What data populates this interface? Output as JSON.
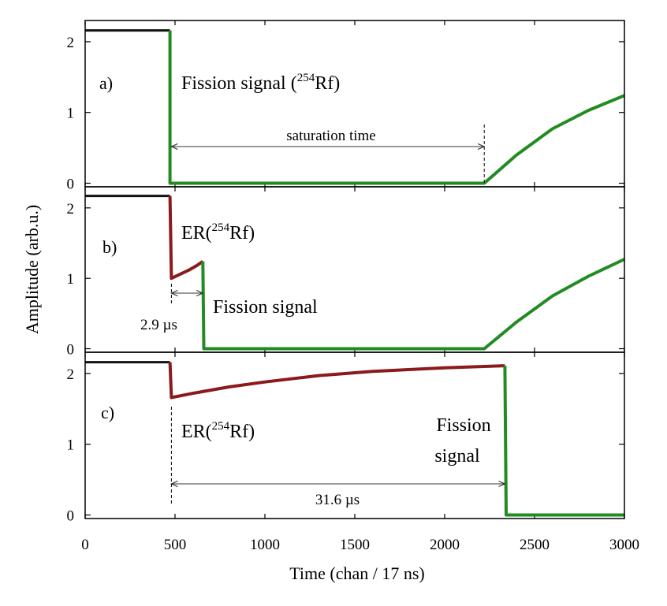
{
  "chart_data": {
    "type": "line",
    "xlabel": "Time (chan / 17 ns)",
    "ylabel": "Amplitude (arb.u.)",
    "xlim": [
      0,
      3000
    ],
    "xticks": [
      0,
      500,
      1000,
      1500,
      2000,
      2500,
      3000
    ],
    "ylim": [
      -0.05,
      2.3
    ],
    "yticks": [
      0,
      1,
      2
    ],
    "grid": false,
    "colors": {
      "baseline": "#111111",
      "er": "#8b1a1a",
      "fission": "#228b22",
      "frame": "#000000"
    },
    "panels": [
      {
        "label": "a)",
        "series": [
          {
            "name": "baseline",
            "x": [
              0,
              472
            ],
            "y": [
              2.16,
              2.16
            ]
          },
          {
            "name": "fission",
            "x": [
              472,
              472,
              480,
              2220,
              2400,
              2600,
              2800,
              3000
            ],
            "y": [
              2.16,
              0.0,
              0.0,
              0.0,
              0.4,
              0.77,
              1.03,
              1.24
            ]
          }
        ],
        "annotations": {
          "fission_pre": "Fission signal (",
          "fission_sup": "254",
          "fission_post": "Rf)",
          "interval": "saturation time",
          "interval_start": 480,
          "interval_end": 2220
        }
      },
      {
        "label": "b)",
        "series": [
          {
            "name": "baseline",
            "x": [
              0,
              472
            ],
            "y": [
              2.17,
              2.17
            ]
          },
          {
            "name": "er",
            "x": [
              472,
              480,
              530,
              580,
              620,
              655
            ],
            "y": [
              2.17,
              1.0,
              1.06,
              1.12,
              1.18,
              1.24
            ]
          },
          {
            "name": "fission",
            "x": [
              655,
              660,
              2220,
              2400,
              2600,
              2800,
              3000
            ],
            "y": [
              1.24,
              0.0,
              0.0,
              0.38,
              0.75,
              1.03,
              1.27
            ]
          }
        ],
        "annotations": {
          "er_pre": "ER(",
          "er_sup": "254",
          "er_post": "Rf)",
          "fission": "Fission signal",
          "interval": "2.9 µs",
          "interval_start": 480,
          "interval_end": 655
        }
      },
      {
        "label": "c)",
        "series": [
          {
            "name": "baseline",
            "x": [
              0,
              472
            ],
            "y": [
              2.16,
              2.16
            ]
          },
          {
            "name": "er",
            "x": [
              472,
              480,
              600,
              800,
              1000,
              1300,
              1600,
              2000,
              2335
            ],
            "y": [
              2.16,
              1.66,
              1.72,
              1.81,
              1.88,
              1.97,
              2.03,
              2.08,
              2.11
            ]
          },
          {
            "name": "fission",
            "x": [
              2335,
              2342,
              2350,
              3000
            ],
            "y": [
              2.11,
              0.0,
              0.0,
              0.0
            ]
          }
        ],
        "annotations": {
          "er_pre": "ER(",
          "er_sup": "254",
          "er_post": "Rf)",
          "fission_line1": "Fission",
          "fission_line2": "signal",
          "interval": "31.6 µs",
          "interval_start": 480,
          "interval_end": 2335
        }
      }
    ]
  }
}
